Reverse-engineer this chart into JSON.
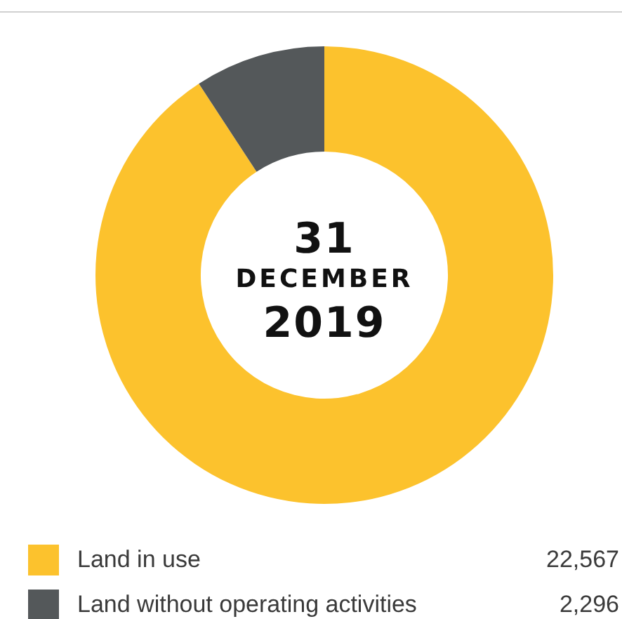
{
  "chart_data": {
    "type": "donut",
    "title": "31 DECEMBER 2019",
    "categories": [
      "Land in use",
      "Land without operating activities"
    ],
    "values": [
      22567,
      2296
    ],
    "colors": [
      "#fcc22d",
      "#54585a"
    ],
    "value_labels": [
      "22,567",
      "2,296"
    ],
    "legend": "bottom"
  }
}
